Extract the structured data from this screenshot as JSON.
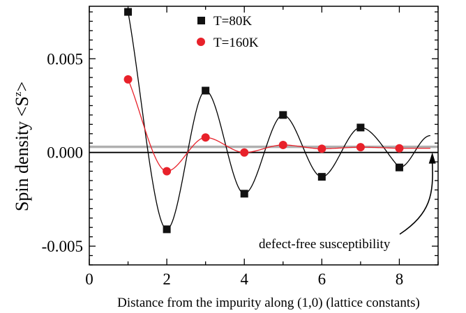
{
  "chart_data": {
    "type": "scatter",
    "xlabel": "Distance from the impurity along (1,0) (lattice constants)",
    "ylabel": "Spin density <S",
    "ylabel_sup": "z",
    "ylabel_end": ">",
    "xlim": [
      0,
      9
    ],
    "ylim": [
      -0.006,
      0.0078
    ],
    "x_ticks": [
      0,
      2,
      4,
      6,
      8
    ],
    "x_tick_labels": [
      "0",
      "2",
      "4",
      "6",
      "8"
    ],
    "y_ticks": [
      -0.005,
      0.0,
      0.005
    ],
    "y_tick_labels": [
      "-0.005",
      "0.000",
      "0.005"
    ],
    "legend_position": "top-center",
    "grid": false,
    "series": [
      {
        "name": "T=80K",
        "marker": "square",
        "color": "#111111",
        "line_color": "#000000",
        "x": [
          1,
          2,
          3,
          4,
          5,
          6,
          7,
          8
        ],
        "y": [
          0.0075,
          -0.0041,
          0.0033,
          -0.0022,
          0.002,
          -0.0013,
          0.00133,
          -0.0008
        ]
      },
      {
        "name": "T=160K",
        "marker": "circle",
        "color": "#e8212a",
        "line_color": "#e8212a",
        "x": [
          1,
          2,
          3,
          4,
          5,
          6,
          7,
          8
        ],
        "y": [
          0.0039,
          -0.001,
          0.0008,
          0.0,
          0.0004,
          0.0002,
          0.00028,
          0.00022
        ]
      }
    ],
    "reference_line": {
      "y": 0.0003,
      "color": "#b0b0b0"
    },
    "zero_line": {
      "y": 0.0
    },
    "annotation": {
      "text": "defect-free susceptibility",
      "arrow_target_x": 8.85,
      "arrow_target_y": 0.0003
    }
  }
}
